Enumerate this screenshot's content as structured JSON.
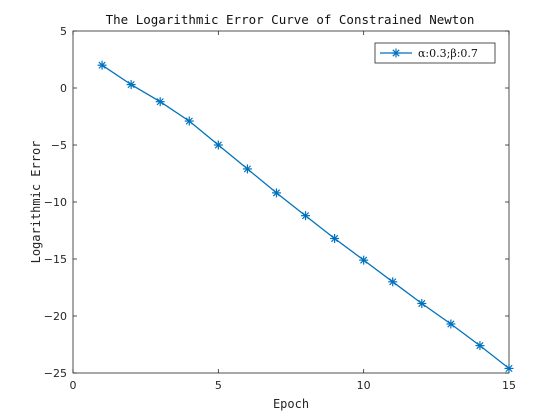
{
  "chart_data": {
    "type": "line",
    "title": "The Logarithmic Error Curve of Constrained Newton",
    "xlabel": "Epoch",
    "ylabel": "Logarithmic Error",
    "xlim": [
      0,
      15
    ],
    "ylim": [
      -25,
      5
    ],
    "xticks": [
      0,
      5,
      10,
      15
    ],
    "yticks": [
      5,
      0,
      -5,
      -10,
      -15,
      -20,
      -25
    ],
    "grid": false,
    "legend_position": "top-right",
    "series": [
      {
        "name": "α:0.3;β:0.7",
        "color": "#0072BD",
        "marker": "asterisk",
        "x": [
          1,
          2,
          3,
          4,
          5,
          6,
          7,
          8,
          9,
          10,
          11,
          12,
          13,
          14,
          15
        ],
        "y": [
          2.0,
          0.3,
          -1.2,
          -2.9,
          -5.0,
          -7.1,
          -9.2,
          -11.2,
          -13.2,
          -15.1,
          -17.0,
          -18.9,
          -20.7,
          -22.6,
          -24.6
        ]
      }
    ]
  }
}
